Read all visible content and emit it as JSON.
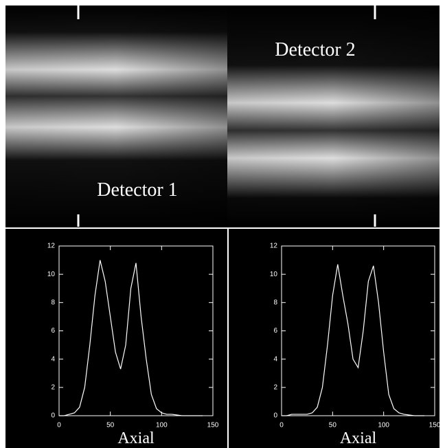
{
  "panels": [
    {
      "label": "Detector 1"
    },
    {
      "label": "Detector 2"
    }
  ],
  "chart_data": [
    {
      "type": "line",
      "xlabel": "Axial",
      "color": "#ffffff",
      "x": [
        0,
        5,
        10,
        15,
        20,
        25,
        30,
        35,
        40,
        45,
        50,
        55,
        60,
        65,
        70,
        75,
        80,
        85,
        90,
        95,
        100,
        105,
        110,
        115,
        120,
        125,
        130,
        135,
        140
      ],
      "values": [
        0,
        0,
        0.1,
        0.2,
        0.6,
        2,
        5,
        8.5,
        11,
        9.5,
        7,
        4.5,
        3.3,
        5,
        9,
        10.8,
        7,
        4,
        1.5,
        0.5,
        0.2,
        0.1,
        0.1,
        0.05,
        0,
        0,
        0,
        0,
        0
      ],
      "xlim": [
        0,
        150
      ],
      "xticks": [
        0,
        50,
        100,
        150
      ],
      "ylim": [
        0,
        12
      ],
      "yticks": [
        0,
        2,
        4,
        6,
        8,
        10,
        12
      ]
    },
    {
      "type": "line",
      "xlabel": "Axial",
      "color": "#ffffff",
      "x": [
        0,
        5,
        10,
        15,
        20,
        25,
        30,
        35,
        40,
        45,
        50,
        55,
        60,
        65,
        70,
        75,
        80,
        85,
        90,
        95,
        100,
        105,
        110,
        115,
        120,
        125,
        130,
        135,
        140
      ],
      "values": [
        0,
        0,
        0.1,
        0.1,
        0.1,
        0.1,
        0.2,
        0.6,
        2,
        5,
        8.5,
        10.7,
        8.5,
        6.5,
        4,
        3.4,
        6,
        9.5,
        10.6,
        8,
        4.5,
        1.5,
        0.5,
        0.2,
        0.1,
        0.05,
        0,
        0,
        0
      ],
      "xlim": [
        0,
        150
      ],
      "xticks": [
        0,
        50,
        100,
        150
      ],
      "ylim": [
        0,
        12
      ],
      "yticks": [
        0,
        2,
        4,
        6,
        8,
        10,
        12
      ]
    }
  ]
}
